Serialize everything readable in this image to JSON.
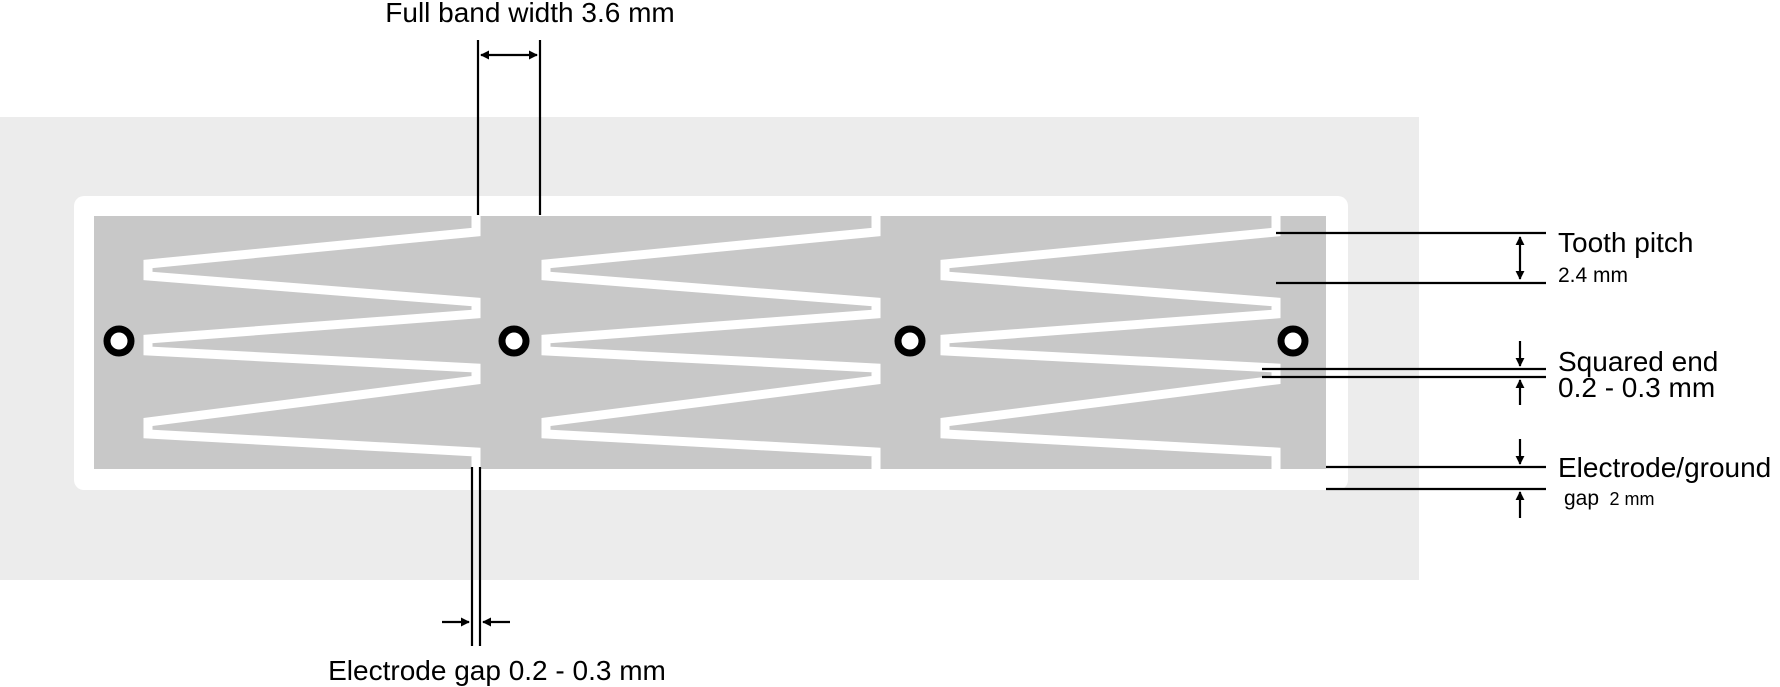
{
  "labels": {
    "full_band_width": "Full band width 3.6 mm",
    "tooth_pitch_title": "Tooth pitch",
    "tooth_pitch_value": "2.4 mm",
    "squared_end_title": "Squared end",
    "squared_end_value": "0.2 - 0.3 mm",
    "electrode_ground_title": "Electrode/ground",
    "electrode_ground_gap_word": "gap",
    "electrode_ground_gap_value": "2 mm",
    "electrode_gap": "Electrode gap 0.2 - 0.3 mm"
  },
  "colors": {
    "substrate": "#ececec",
    "copper": "#c8c8c8",
    "gap": "#ffffff",
    "ink": "#000000"
  }
}
